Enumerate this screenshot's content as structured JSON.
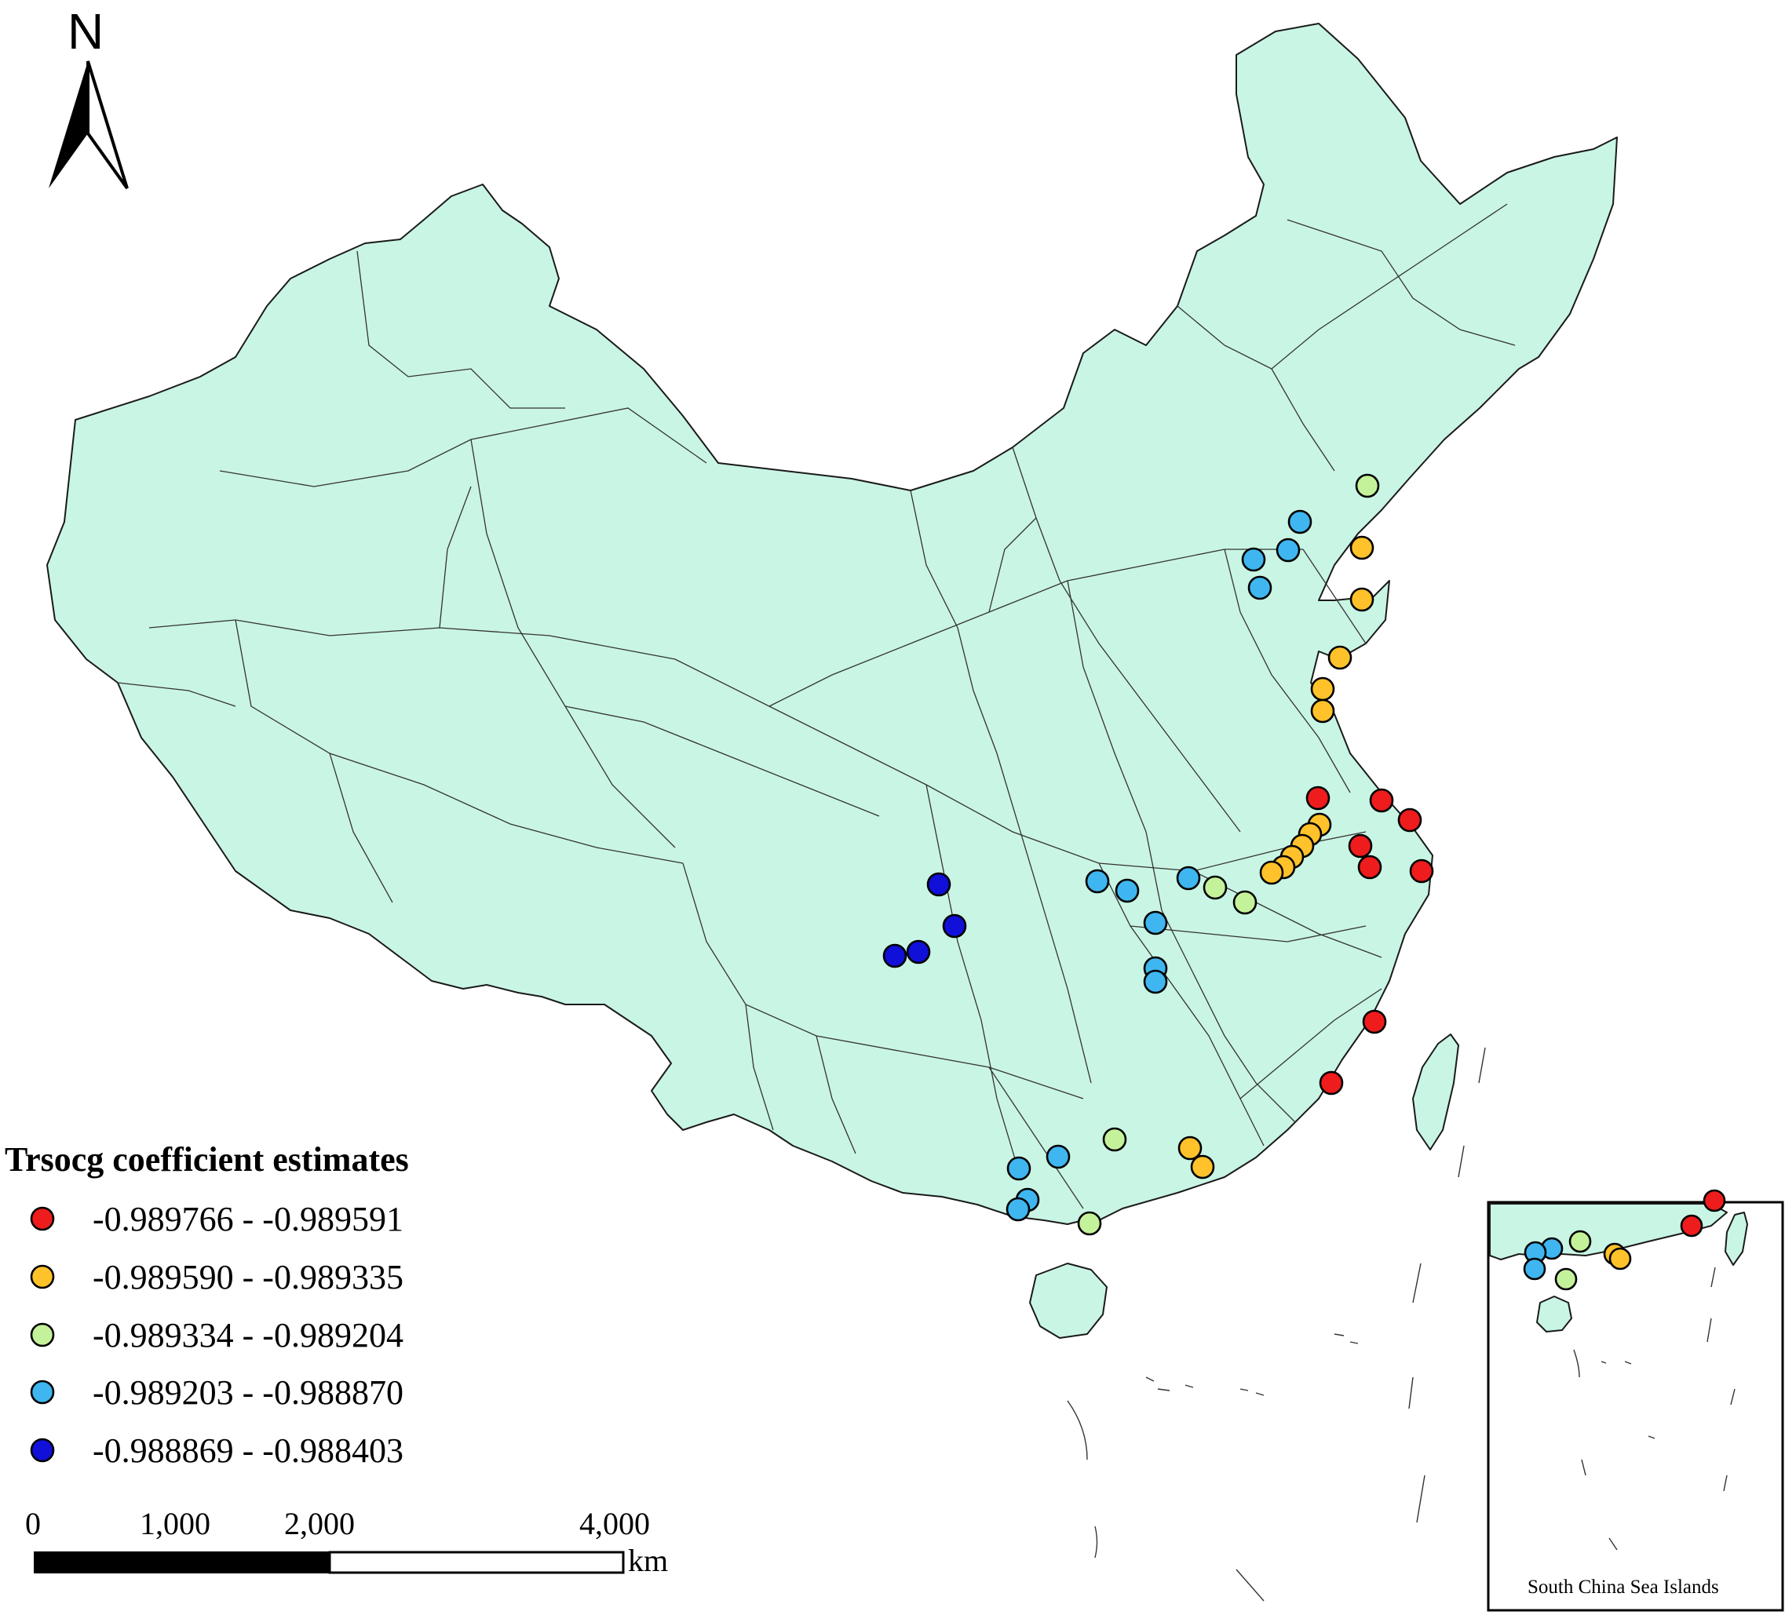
{
  "north_arrow": {
    "label": "N"
  },
  "legend": {
    "title": "Trsocg coefficient estimates",
    "classes": [
      {
        "label": "-0.989766 - -0.989591",
        "color": "#ee1c1c"
      },
      {
        "label": "-0.989590 - -0.989335",
        "color": "#ffc22a"
      },
      {
        "label": "-0.989334 - -0.989204",
        "color": "#c4f29b"
      },
      {
        "label": "-0.989203 - -0.988870",
        "color": "#3fb6f0"
      },
      {
        "label": "-0.988869 - -0.988403",
        "color": "#1010d8"
      }
    ]
  },
  "scale_bar": {
    "ticks": [
      "0",
      "1,000",
      "2,000",
      "4,000"
    ],
    "unit": "km"
  },
  "inset": {
    "label": "South China Sea Islands"
  },
  "colors": {
    "land": "#c9f5e4",
    "border": "#1a1a1a"
  }
}
